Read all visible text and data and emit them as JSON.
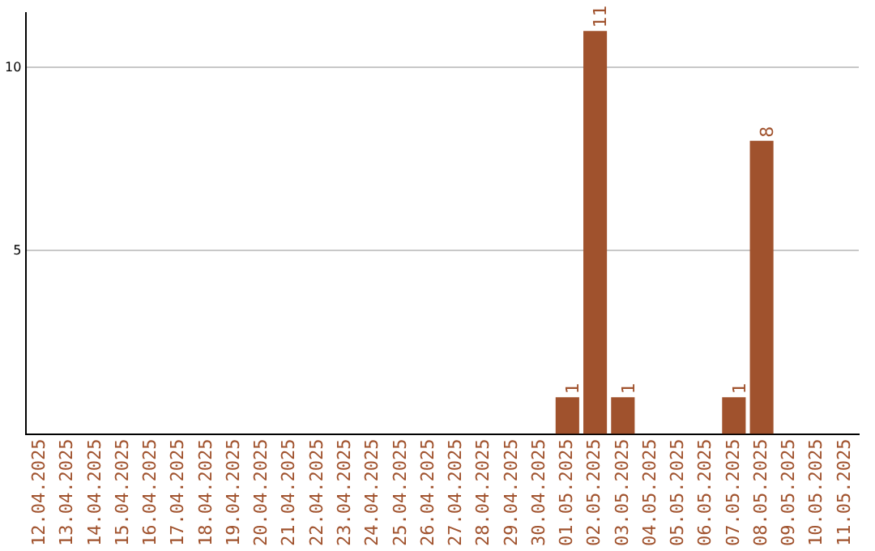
{
  "chart_data": {
    "type": "bar",
    "categories": [
      "12.04.2025",
      "13.04.2025",
      "14.04.2025",
      "15.04.2025",
      "16.04.2025",
      "17.04.2025",
      "18.04.2025",
      "19.04.2025",
      "20.04.2025",
      "21.04.2025",
      "22.04.2025",
      "23.04.2025",
      "24.04.2025",
      "25.04.2025",
      "26.04.2025",
      "27.04.2025",
      "28.04.2025",
      "29.04.2025",
      "30.04.2025",
      "01.05.2025",
      "02.05.2025",
      "03.05.2025",
      "04.05.2025",
      "05.05.2025",
      "06.05.2025",
      "07.05.2025",
      "08.05.2025",
      "09.05.2025",
      "10.05.2025",
      "11.05.2025"
    ],
    "values": [
      0,
      0,
      0,
      0,
      0,
      0,
      0,
      0,
      0,
      0,
      0,
      0,
      0,
      0,
      0,
      0,
      0,
      0,
      0,
      1,
      11,
      1,
      0,
      0,
      0,
      1,
      8,
      0,
      0,
      0
    ],
    "value_labels": [
      null,
      null,
      null,
      null,
      null,
      null,
      null,
      null,
      null,
      null,
      null,
      null,
      null,
      null,
      null,
      null,
      null,
      null,
      null,
      "1",
      "11",
      "1",
      null,
      null,
      null,
      "1",
      "8",
      null,
      null,
      null
    ],
    "color": "#a0522d",
    "ylim": [
      0,
      11.5
    ],
    "yticks": [
      5,
      10
    ],
    "grid": "y",
    "legend": false
  }
}
